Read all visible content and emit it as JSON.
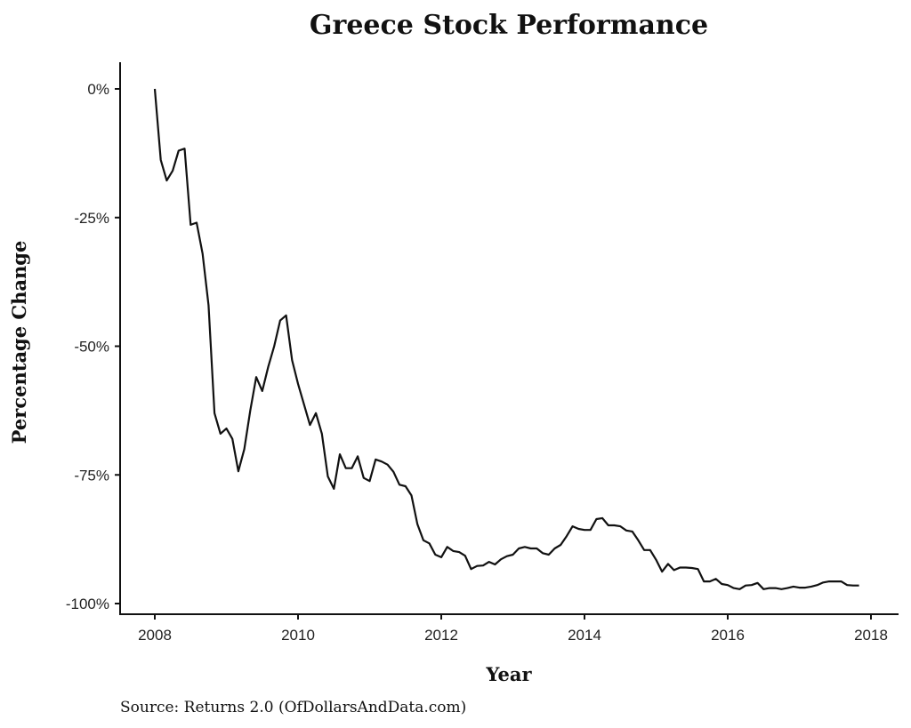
{
  "chart_data": {
    "type": "line",
    "title": "Greece Stock Performance",
    "xlabel": "Year",
    "ylabel": "Percentage Change",
    "source": "Source: Returns 2.0 (OfDollarsAndData.com)",
    "xlim": [
      2007.5,
      2018.4
    ],
    "ylim": [
      -102,
      5
    ],
    "x_ticks": [
      2008,
      2010,
      2012,
      2014,
      2016,
      2018
    ],
    "x_tick_labels": [
      "2008",
      "2010",
      "2012",
      "2014",
      "2016",
      "2018"
    ],
    "y_ticks": [
      0,
      -25,
      -50,
      -75,
      -100
    ],
    "y_tick_labels": [
      "0%",
      "-25%",
      "-50%",
      "-75%",
      "-100%"
    ],
    "grid": false,
    "line_color": "#111111",
    "series": [
      {
        "name": "Greece",
        "x_start": 2008,
        "x_step_months": 1,
        "values": [
          0,
          -13.8,
          -17.8,
          -15.9,
          -12,
          -11.6,
          -26.4,
          -26,
          -32,
          -42,
          -63,
          -67,
          -66,
          -68,
          -74.3,
          -70,
          -62.5,
          -56,
          -58.7,
          -54,
          -50,
          -45,
          -44,
          -52.7,
          -57.3,
          -61.3,
          -65.3,
          -63,
          -67,
          -75.3,
          -77.7,
          -71,
          -73.7,
          -73.7,
          -71.4,
          -75.6,
          -76.2,
          -72,
          -72.4,
          -73,
          -74.4,
          -76.9,
          -77.2,
          -79,
          -84.6,
          -87.7,
          -88.3,
          -90.5,
          -91,
          -89,
          -89.8,
          -90,
          -90.7,
          -93.3,
          -92.7,
          -92.6,
          -91.9,
          -92.4,
          -91.4,
          -90.8,
          -90.5,
          -89.3,
          -89,
          -89.3,
          -89.3,
          -90.2,
          -90.5,
          -89.3,
          -88.6,
          -86.9,
          -85,
          -85.5,
          -85.7,
          -85.7,
          -83.6,
          -83.4,
          -84.8,
          -84.8,
          -85,
          -85.8,
          -86,
          -87.7,
          -89.6,
          -89.6,
          -91.5,
          -93.8,
          -92.3,
          -93.5,
          -93,
          -93,
          -93.1,
          -93.3,
          -95.7,
          -95.7,
          -95.2,
          -96.2,
          -96.4,
          -97,
          -97.2,
          -96.5,
          -96.4,
          -96,
          -97.2,
          -97,
          -97,
          -97.2,
          -97,
          -96.7,
          -96.9,
          -96.9,
          -96.7,
          -96.4,
          -95.9,
          -95.7,
          -95.7,
          -95.7,
          -96.4,
          -96.5,
          -96.5
        ]
      }
    ]
  }
}
